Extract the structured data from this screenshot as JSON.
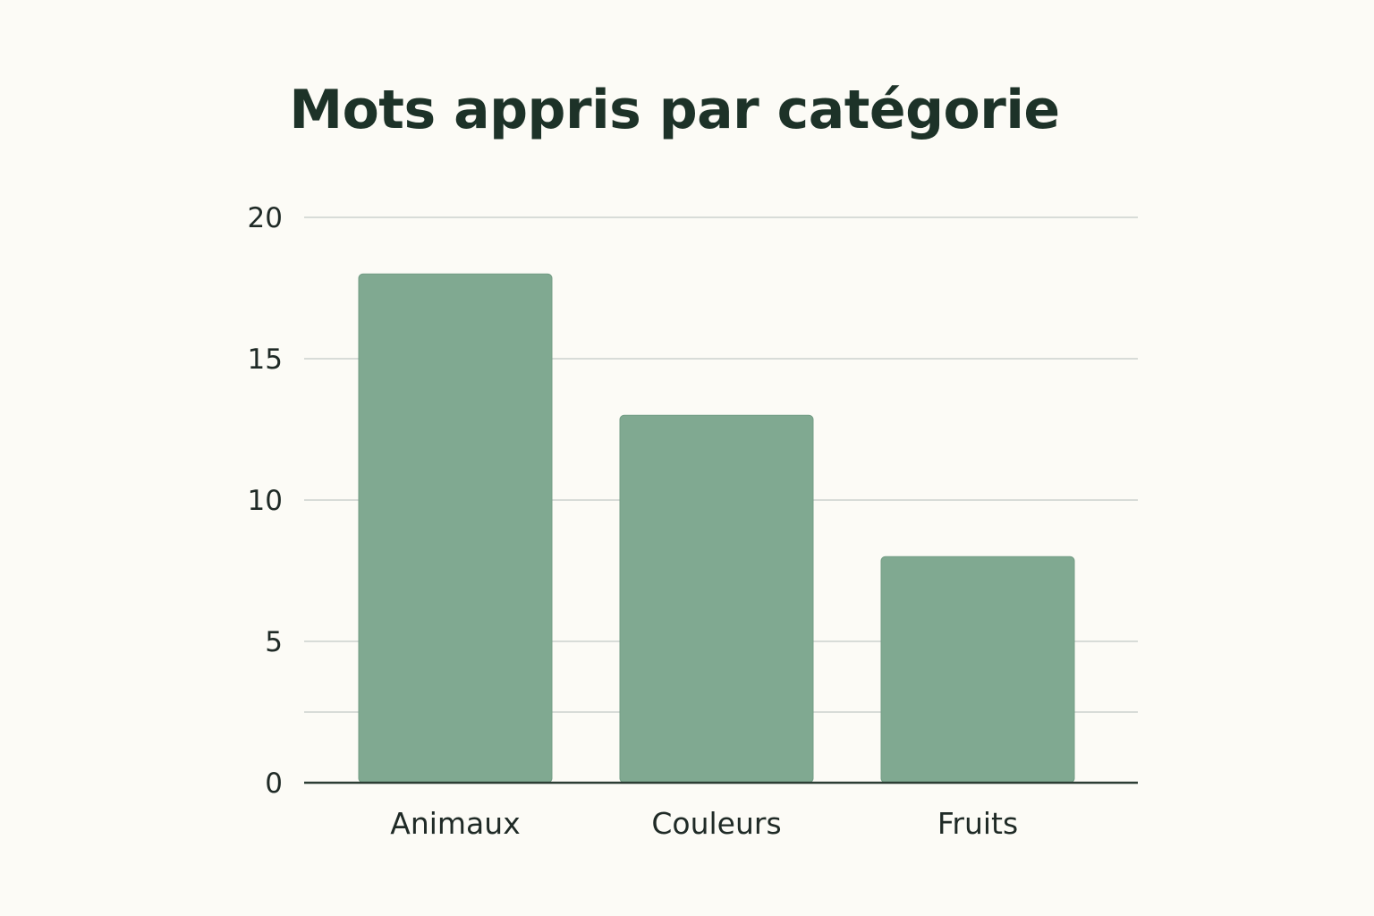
{
  "chart_data": {
    "type": "bar",
    "title": "Mots appris par catégorie",
    "categories": [
      "Animaux",
      "Couleurs",
      "Fruits"
    ],
    "values": [
      18,
      13,
      8
    ],
    "xlabel": "",
    "ylabel": "",
    "ylim": [
      0,
      20
    ],
    "yticks": [
      0,
      5,
      10,
      15,
      20
    ],
    "ytick_labels": [
      "0",
      "5",
      "10",
      "15",
      "20"
    ],
    "gridlines": [
      2.5,
      5,
      10,
      15,
      20
    ],
    "grid": true,
    "colors": {
      "bar": "#80a991",
      "grid": "#ccd2cd",
      "axis": "#2c3d34",
      "title": "#1d3228",
      "text": "#1f2a26"
    }
  }
}
